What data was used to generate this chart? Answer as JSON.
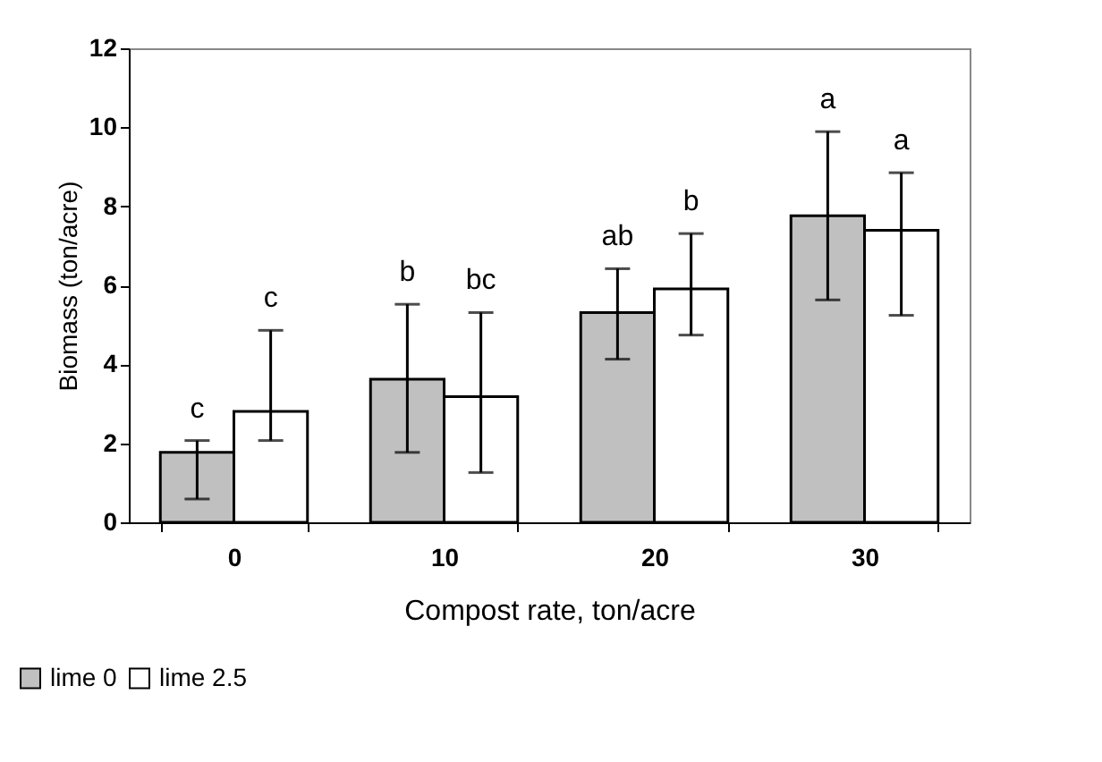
{
  "chart_data": {
    "type": "bar",
    "xlabel": "Compost rate, ton/acre",
    "ylabel": "Biomass (ton/acre)",
    "categories": [
      "0",
      "10",
      "20",
      "30"
    ],
    "series": [
      {
        "name": "lime 0",
        "color": "#c0c0c0",
        "values": [
          1.77,
          3.62,
          5.31,
          7.76
        ],
        "errors": [
          [
            0.59,
            2.07
          ],
          [
            1.77,
            5.52
          ],
          [
            4.13,
            6.42
          ],
          [
            5.63,
            9.89
          ]
        ]
      },
      {
        "name": "lime 2.5",
        "color": "#ffffff",
        "values": [
          2.81,
          3.18,
          5.91,
          7.39
        ],
        "errors": [
          [
            2.07,
            4.86
          ],
          [
            1.26,
            5.31
          ],
          [
            4.74,
            7.31
          ],
          [
            5.24,
            8.85
          ]
        ]
      }
    ],
    "annotations": [
      "c",
      "c",
      "b",
      "bc",
      "ab",
      "b",
      "a",
      "a"
    ],
    "ylim": [
      0,
      12
    ],
    "yticks": [
      0,
      2,
      4,
      6,
      8,
      10,
      12
    ],
    "grid": false,
    "legend": "bottom left"
  }
}
